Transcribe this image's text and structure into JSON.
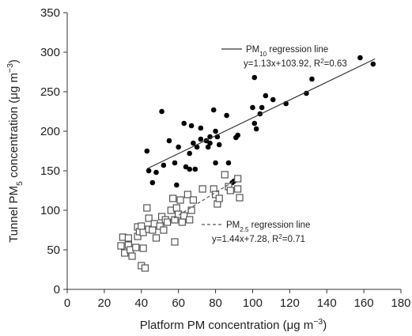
{
  "chart_data": {
    "type": "scatter",
    "x_label": [
      [
        "Platform PM concentration ("
      ],
      [
        "μg m"
      ],
      [
        "−3",
        "super"
      ],
      [
        ")"
      ]
    ],
    "y_label": [
      [
        "Tunnel PM"
      ],
      [
        "5",
        "sub"
      ],
      [
        " concentration (μg m"
      ],
      [
        "−3",
        "super"
      ],
      [
        ")"
      ]
    ],
    "xlim": [
      0,
      180
    ],
    "xticks": [
      0,
      20,
      40,
      60,
      80,
      100,
      120,
      140,
      160,
      180
    ],
    "ylim": [
      0,
      350
    ],
    "yticks": [
      0,
      50,
      100,
      150,
      200,
      250,
      300,
      350
    ],
    "grid": false,
    "series": [
      {
        "marker": "circle",
        "color": "#000000",
        "x": [
          43,
          44,
          46,
          48,
          51,
          52,
          55,
          58,
          59,
          60,
          63,
          64,
          66,
          66,
          67,
          68,
          69,
          70,
          72,
          72,
          75,
          76,
          77,
          77,
          79,
          80,
          80,
          81,
          82,
          86,
          87,
          89,
          91,
          92,
          100,
          101,
          101,
          102,
          104,
          105,
          107,
          111,
          118,
          129,
          132,
          158,
          165,
          90
        ],
        "y": [
          175,
          150,
          135,
          148,
          225,
          157,
          188,
          160,
          132,
          180,
          210,
          155,
          152,
          172,
          207,
          185,
          152,
          180,
          204,
          190,
          188,
          180,
          185,
          193,
          227,
          200,
          160,
          193,
          183,
          220,
          160,
          135,
          192,
          195,
          230,
          268,
          210,
          203,
          222,
          230,
          245,
          240,
          235,
          248,
          266,
          293,
          285,
          137
        ]
      },
      {
        "marker": "square",
        "color": "#555555",
        "x": [
          29,
          30,
          31,
          33,
          33,
          34,
          35,
          37,
          38,
          38,
          39,
          40,
          40,
          41,
          41,
          42,
          43,
          44,
          44,
          46,
          47,
          48,
          50,
          51,
          52,
          53,
          54,
          56,
          57,
          58,
          58,
          59,
          60,
          61,
          62,
          63,
          65,
          66,
          67,
          68,
          73,
          79,
          80,
          81,
          82,
          85,
          87,
          92,
          92,
          93,
          88
        ],
        "y": [
          55,
          66,
          46,
          56,
          65,
          50,
          42,
          53,
          79,
          67,
          73,
          30,
          80,
          72,
          52,
          27,
          103,
          90,
          76,
          75,
          83,
          65,
          80,
          92,
          75,
          88,
          85,
          100,
          115,
          88,
          60,
          103,
          95,
          113,
          85,
          93,
          120,
          88,
          100,
          113,
          127,
          127,
          120,
          108,
          115,
          145,
          130,
          140,
          127,
          116,
          125
        ]
      }
    ],
    "regression_lines": [
      {
        "label": [
          [
            "PM"
          ],
          [
            "10",
            "sub"
          ],
          [
            " regression line"
          ]
        ],
        "equation": [
          [
            "y=1.13x+103.92, R"
          ],
          [
            "2",
            "super"
          ],
          [
            "=0.63"
          ]
        ],
        "slope": 1.13,
        "intercept": 103.92,
        "x_range": [
          43,
          166
        ],
        "dashed": false,
        "color": "#333333"
      },
      {
        "label": [
          [
            "PM"
          ],
          [
            "2.5",
            "sub"
          ],
          [
            " regression line"
          ]
        ],
        "equation": [
          [
            "y=1.44x+7.28, R"
          ],
          [
            "2",
            "super"
          ],
          [
            "=0.71"
          ]
        ],
        "slope": 1.44,
        "intercept": 7.28,
        "x_range": [
          55,
          90
        ],
        "dashed": true,
        "color": "#555555"
      }
    ]
  }
}
